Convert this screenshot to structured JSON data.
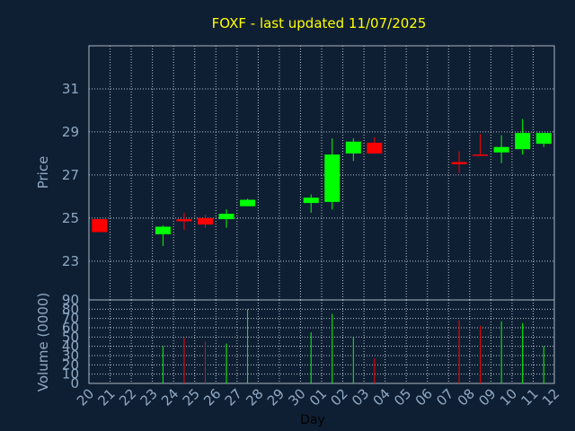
{
  "chart_data": {
    "type": "candlestick",
    "title": "FOXF - last updated 11/07/2025",
    "xlabel": "Day",
    "price_panel": {
      "ylabel": "Price",
      "ylim": [
        21.2,
        33.0
      ],
      "yticks": [
        23,
        25,
        27,
        29,
        31
      ]
    },
    "volume_panel": {
      "ylabel": "Volume (0000)",
      "ylim": [
        0,
        90
      ],
      "yticks": [
        0,
        10,
        20,
        30,
        40,
        50,
        60,
        70,
        80,
        90
      ]
    },
    "x_tick_labels": [
      "20",
      "21",
      "22",
      "23",
      "24",
      "25",
      "26",
      "27",
      "28",
      "29",
      "30",
      "01",
      "02",
      "03",
      "04",
      "05",
      "06",
      "07",
      "08",
      "09",
      "10",
      "11",
      "12"
    ],
    "candles": [
      {
        "day": "20",
        "open": 24.95,
        "high": 24.95,
        "low": 24.35,
        "close": 24.35,
        "volume": 0
      },
      {
        "day": "23",
        "open": 24.25,
        "high": 24.65,
        "low": 23.7,
        "close": 24.6,
        "volume": 40
      },
      {
        "day": "24",
        "open": 24.95,
        "high": 25.25,
        "low": 24.45,
        "close": 24.85,
        "volume": 49
      },
      {
        "day": "25",
        "open": 25.0,
        "high": 25.15,
        "low": 24.55,
        "close": 24.7,
        "volume": 45
      },
      {
        "day": "26",
        "open": 24.95,
        "high": 25.4,
        "low": 24.55,
        "close": 25.2,
        "volume": 43
      },
      {
        "day": "27",
        "open": 25.55,
        "high": 25.9,
        "low": 25.55,
        "close": 25.85,
        "volume": 80
      },
      {
        "day": "30",
        "open": 25.7,
        "high": 26.1,
        "low": 25.25,
        "close": 25.95,
        "volume": 55
      },
      {
        "day": "01",
        "open": 25.75,
        "high": 28.7,
        "low": 25.4,
        "close": 27.95,
        "volume": 75
      },
      {
        "day": "02",
        "open": 28.0,
        "high": 28.7,
        "low": 27.65,
        "close": 28.55,
        "volume": 50
      },
      {
        "day": "03",
        "open": 28.5,
        "high": 28.75,
        "low": 28.0,
        "close": 28.0,
        "volume": 27
      },
      {
        "day": "07",
        "open": 27.6,
        "high": 28.1,
        "low": 27.1,
        "close": 27.5,
        "volume": 68
      },
      {
        "day": "08",
        "open": 27.95,
        "high": 28.9,
        "low": 27.9,
        "close": 27.9,
        "volume": 62
      },
      {
        "day": "09",
        "open": 28.05,
        "high": 28.85,
        "low": 27.55,
        "close": 28.3,
        "volume": 67
      },
      {
        "day": "10",
        "open": 28.2,
        "high": 29.6,
        "low": 27.95,
        "close": 28.95,
        "volume": 65
      },
      {
        "day": "11",
        "open": 28.45,
        "high": 28.95,
        "low": 28.3,
        "close": 28.95,
        "volume": 40
      }
    ],
    "colors": {
      "background": "#0f1f33",
      "up": "#00ff00",
      "down": "#ff0000",
      "title": "#ffff00",
      "axis_text": "#8fa9c4"
    }
  }
}
